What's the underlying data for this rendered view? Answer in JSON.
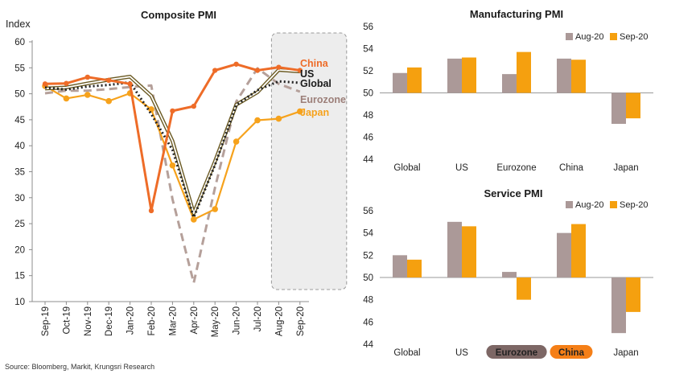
{
  "source_note": "Source: Bloomberg, Markit, Krungsri Research",
  "colors": {
    "china": "#ee6c28",
    "us_fill": "#ffffff",
    "us_outline": "#6b5a22",
    "global": "#222222",
    "eurozone": "#b5a09a",
    "japan": "#f6a21c",
    "aug": "#ab9998",
    "sep": "#f5a00f",
    "shade": "#ededed"
  },
  "chart_data": [
    {
      "type": "line",
      "title": "Composite PMI",
      "ylabel": "Index",
      "ylim": [
        10,
        60
      ],
      "yticks": [
        10,
        15,
        20,
        25,
        30,
        35,
        40,
        45,
        50,
        55,
        60
      ],
      "x": [
        "Sep-19",
        "Oct-19",
        "Nov-19",
        "Dec-19",
        "Jan-20",
        "Feb-20",
        "Mar-20",
        "Apr-20",
        "May-20",
        "Jun-20",
        "Jul-20",
        "Aug-20",
        "Sep-20"
      ],
      "highlight_range": [
        "Aug-20",
        "Sep-20"
      ],
      "series": [
        {
          "name": "China",
          "style": "solid-thick",
          "values": [
            51.9,
            52.0,
            53.2,
            52.6,
            51.9,
            27.5,
            46.7,
            47.6,
            54.5,
            55.7,
            54.5,
            55.1,
            54.5
          ]
        },
        {
          "name": "US",
          "style": "double",
          "values": [
            51.0,
            51.2,
            52.0,
            52.7,
            53.3,
            49.6,
            40.9,
            27.0,
            37.0,
            47.9,
            50.3,
            54.6,
            54.3
          ]
        },
        {
          "name": "Global",
          "style": "dotted",
          "values": [
            51.2,
            50.8,
            51.4,
            51.7,
            52.2,
            46.1,
            39.2,
            26.2,
            36.3,
            47.8,
            50.7,
            52.4,
            52.1
          ]
        },
        {
          "name": "Eurozone",
          "style": "dashed",
          "values": [
            50.1,
            50.6,
            50.6,
            50.9,
            51.3,
            51.6,
            29.7,
            13.6,
            31.9,
            48.5,
            54.9,
            51.9,
            50.4
          ]
        },
        {
          "name": "Japan",
          "style": "solid-markers",
          "values": [
            51.5,
            49.1,
            49.8,
            48.6,
            50.1,
            47.0,
            36.2,
            25.8,
            27.8,
            40.8,
            44.9,
            45.2,
            46.6
          ]
        }
      ]
    },
    {
      "type": "bar",
      "title": "Manufacturing PMI",
      "ylim": [
        44,
        56
      ],
      "yticks": [
        44,
        46,
        48,
        50,
        52,
        54,
        56
      ],
      "baseline": 50,
      "categories": [
        "Global",
        "US",
        "Eurozone",
        "China",
        "Japan"
      ],
      "series": [
        {
          "name": "Aug-20",
          "values": [
            51.8,
            53.1,
            51.7,
            53.1,
            47.2
          ]
        },
        {
          "name": "Sep-20",
          "values": [
            52.3,
            53.2,
            53.7,
            53.0,
            47.7
          ]
        }
      ]
    },
    {
      "type": "bar",
      "title": "Service PMI",
      "ylim": [
        44,
        56
      ],
      "yticks": [
        44,
        46,
        48,
        50,
        52,
        54,
        56
      ],
      "baseline": 50,
      "categories": [
        "Global",
        "US",
        "Eurozone",
        "China",
        "Japan"
      ],
      "highlight_categories": {
        "Eurozone": "#7d6765",
        "China": "#f57f17"
      },
      "series": [
        {
          "name": "Aug-20",
          "values": [
            52.0,
            55.0,
            50.5,
            54.0,
            45.0
          ]
        },
        {
          "name": "Sep-20",
          "values": [
            51.6,
            54.6,
            48.0,
            54.8,
            46.9
          ]
        }
      ]
    }
  ]
}
